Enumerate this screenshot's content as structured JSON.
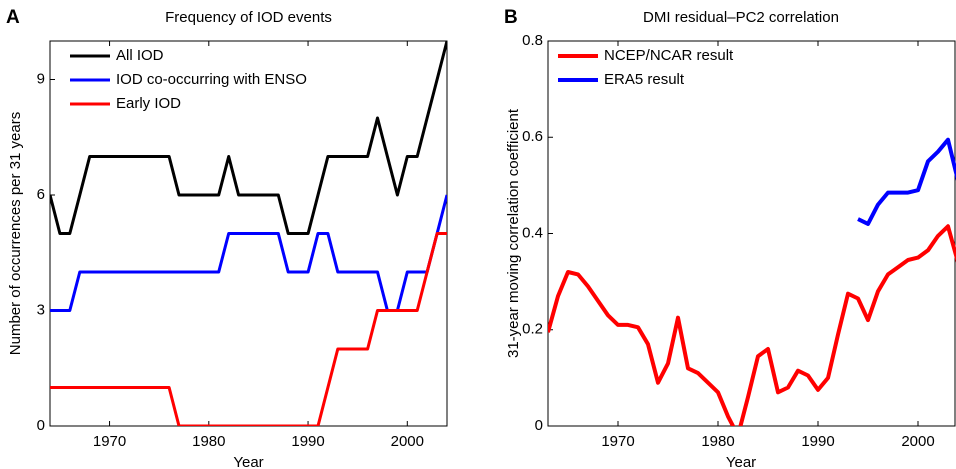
{
  "chart_data": [
    {
      "type": "line",
      "panel_label": "A",
      "title": "Frequency of IOD events",
      "x_label": "Year",
      "y_label": "Number of occurrences per 31 years",
      "x": [
        1964,
        1965,
        1966,
        1967,
        1968,
        1969,
        1970,
        1971,
        1972,
        1973,
        1974,
        1975,
        1976,
        1977,
        1978,
        1979,
        1980,
        1981,
        1982,
        1983,
        1984,
        1985,
        1986,
        1987,
        1988,
        1989,
        1990,
        1991,
        1992,
        1993,
        1994,
        1995,
        1996,
        1997,
        1998,
        1999,
        2000,
        2001,
        2002,
        2003,
        2004
      ],
      "series": [
        {
          "name": "All IOD",
          "color": "#000000",
          "values": [
            6,
            5,
            5,
            6,
            7,
            7,
            7,
            7,
            7,
            7,
            7,
            7,
            7,
            6,
            6,
            6,
            6,
            6,
            7,
            6,
            6,
            6,
            6,
            6,
            5,
            5,
            5,
            6,
            7,
            7,
            7,
            7,
            7,
            8,
            7,
            6,
            7,
            7,
            8,
            9,
            10
          ]
        },
        {
          "name": "IOD co-occurring with ENSO",
          "color": "#0000ff",
          "values": [
            3,
            3,
            3,
            4,
            4,
            4,
            4,
            4,
            4,
            4,
            4,
            4,
            4,
            4,
            4,
            4,
            4,
            4,
            5,
            5,
            5,
            5,
            5,
            5,
            4,
            4,
            4,
            5,
            5,
            4,
            4,
            4,
            4,
            4,
            3,
            3,
            4,
            4,
            4,
            5,
            6
          ]
        },
        {
          "name": "Early IOD",
          "color": "#ff0000",
          "values": [
            1,
            1,
            1,
            1,
            1,
            1,
            1,
            1,
            1,
            1,
            1,
            1,
            1,
            0,
            0,
            0,
            0,
            0,
            0,
            0,
            0,
            0,
            0,
            0,
            0,
            0,
            0,
            0,
            1,
            2,
            2,
            2,
            2,
            3,
            3,
            3,
            3,
            3,
            4,
            5,
            5
          ]
        }
      ],
      "xlim": [
        1964,
        2004
      ],
      "xticks": [
        1970,
        1980,
        1990,
        2000
      ],
      "ylim": [
        0,
        10
      ],
      "yticks": [
        0,
        3,
        6,
        9
      ],
      "legend": "upper left",
      "line_width": 3
    },
    {
      "type": "line",
      "panel_label": "B",
      "title": "DMI residual–PC2 correlation",
      "x_label": "Year",
      "y_label": "31-year moving correlation coefficient",
      "x": [
        1963,
        1964,
        1965,
        1966,
        1967,
        1968,
        1969,
        1970,
        1971,
        1972,
        1973,
        1974,
        1975,
        1976,
        1977,
        1978,
        1979,
        1980,
        1981,
        1982,
        1983,
        1984,
        1985,
        1986,
        1987,
        1988,
        1989,
        1990,
        1991,
        1992,
        1993,
        1994,
        1995,
        1996,
        1997,
        1998,
        1999,
        2000,
        2001,
        2002,
        2003,
        2004
      ],
      "series": [
        {
          "name": "NCEP/NCAR result",
          "color": "#ff0000",
          "values": [
            0.195,
            0.27,
            0.32,
            0.315,
            0.29,
            0.26,
            0.23,
            0.21,
            0.21,
            0.205,
            0.17,
            0.09,
            0.13,
            0.225,
            0.12,
            0.11,
            0.09,
            0.07,
            0.02,
            -0.02,
            0.06,
            0.145,
            0.16,
            0.07,
            0.08,
            0.115,
            0.105,
            0.075,
            0.1,
            0.19,
            0.275,
            0.265,
            0.22,
            0.28,
            0.315,
            0.33,
            0.345,
            0.35,
            0.365,
            0.395,
            0.415,
            0.34
          ]
        },
        {
          "name": "ERA5 result",
          "color": "#0000ff",
          "values": [
            null,
            null,
            null,
            null,
            null,
            null,
            null,
            null,
            null,
            null,
            null,
            null,
            null,
            null,
            null,
            null,
            null,
            null,
            null,
            null,
            null,
            null,
            null,
            null,
            null,
            null,
            null,
            null,
            null,
            null,
            null,
            0.43,
            0.42,
            0.46,
            0.485,
            0.485,
            0.485,
            0.49,
            0.55,
            0.57,
            0.595,
            0.51
          ]
        }
      ],
      "xlim": [
        1963,
        2004
      ],
      "xticks": [
        1970,
        1980,
        1990,
        2000
      ],
      "ylim": [
        0,
        0.8
      ],
      "yticks": [
        0,
        0.2,
        0.4,
        0.6,
        0.8
      ],
      "legend": "upper left",
      "line_width": 4
    }
  ]
}
